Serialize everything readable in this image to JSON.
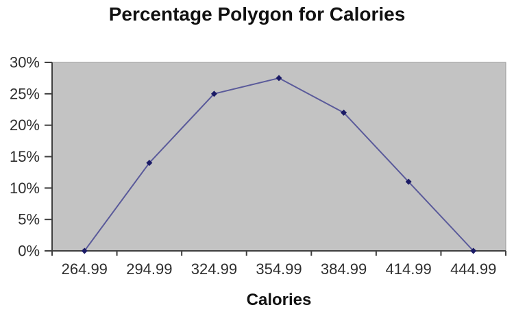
{
  "chart_data": {
    "type": "line",
    "title": "Percentage Polygon for Calories",
    "xlabel": "Calories",
    "ylabel": "",
    "categories": [
      "264.99",
      "294.99",
      "324.99",
      "354.99",
      "384.99",
      "414.99",
      "444.99"
    ],
    "values": [
      0,
      14,
      25,
      27.5,
      22,
      11,
      0
    ],
    "ylim": [
      0,
      30
    ],
    "ytick_step": 5,
    "ytick_labels": [
      "0%",
      "5%",
      "10%",
      "15%",
      "20%",
      "25%",
      "30%"
    ],
    "grid": false,
    "legend": "none",
    "marker": "diamond",
    "colors": {
      "line": "#5a5a9a",
      "marker": "#1b1b66",
      "plot_background": "#c3c3c3",
      "plot_border": "#9a9a9a",
      "axis": "#3f3f3f",
      "tick_text": "#2e2e2e",
      "title_text": "#111111",
      "page_background": "#ffffff"
    }
  }
}
